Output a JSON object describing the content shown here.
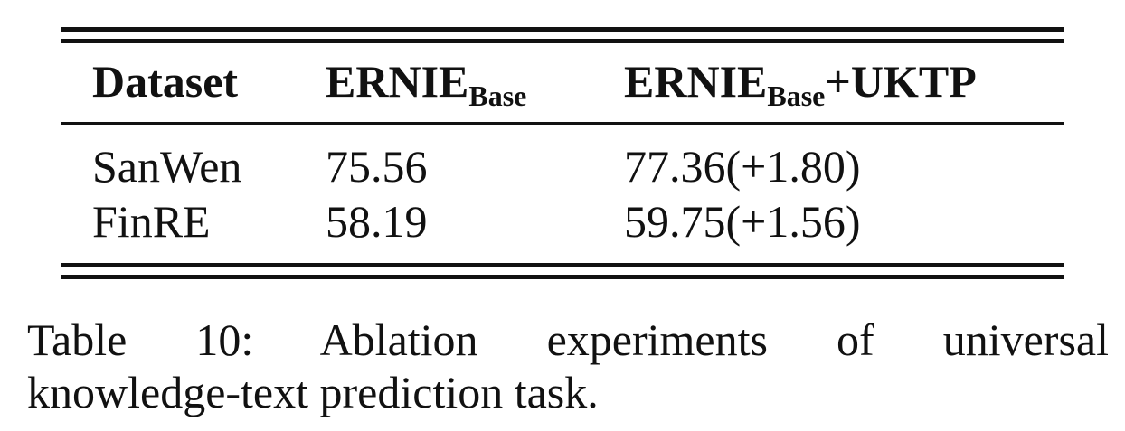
{
  "table": {
    "headers": {
      "col1": "Dataset",
      "col2_main": "ERNIE",
      "col2_sub": "Base",
      "col3_main": "ERNIE",
      "col3_sub": "Base",
      "col3_suffix": "+UKTP"
    },
    "rows": [
      {
        "dataset": "SanWen",
        "base": "75.56",
        "uktp": "77.36(+1.80)"
      },
      {
        "dataset": "FinRE",
        "base": "58.19",
        "uktp": "59.75(+1.56)"
      }
    ]
  },
  "caption": {
    "line1": "Table 10: Ablation experiments of universal",
    "line2": "knowledge-text prediction task."
  }
}
